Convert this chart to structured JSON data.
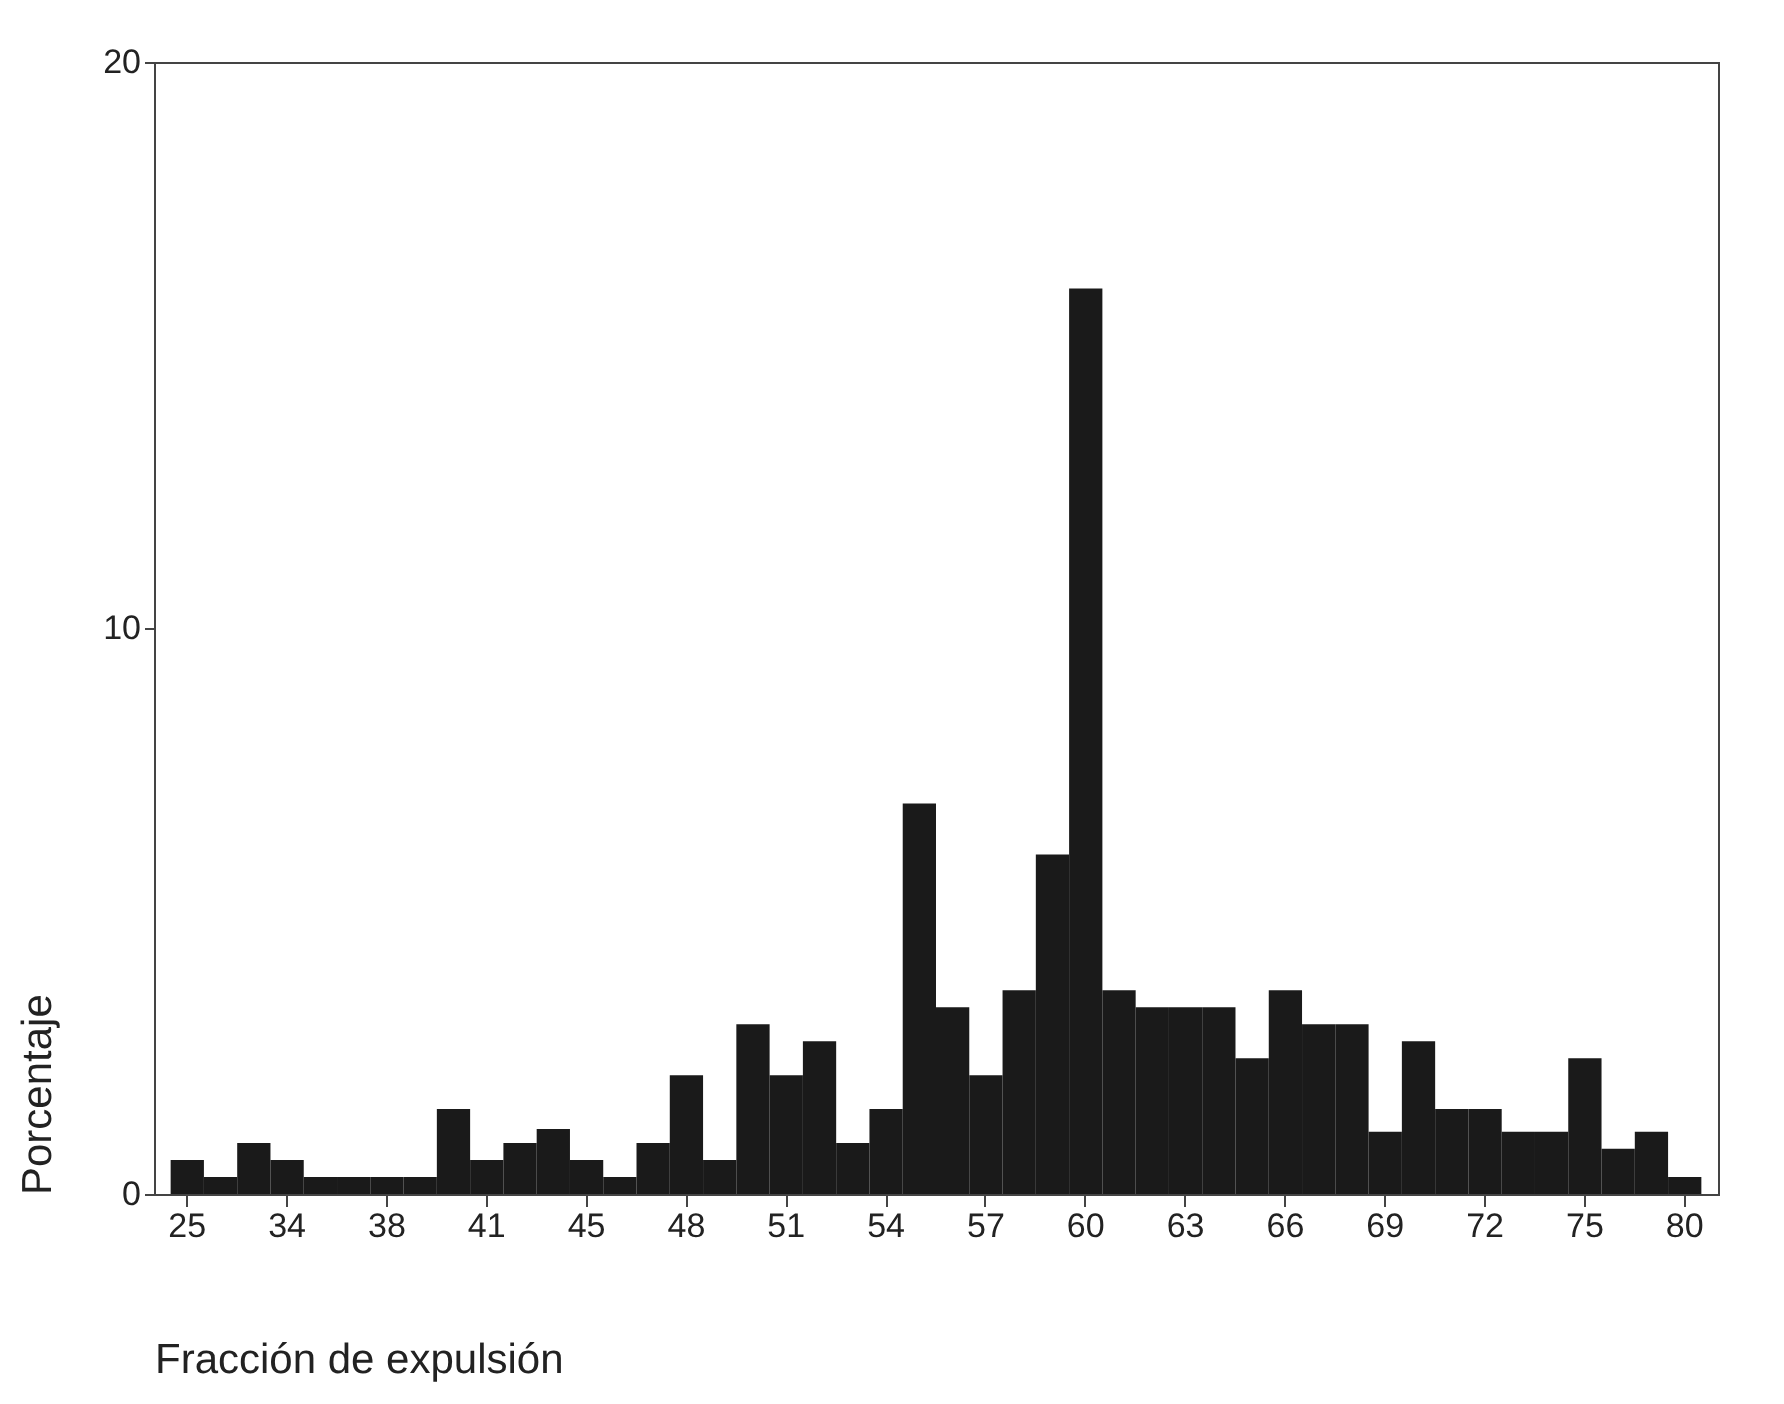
{
  "chart_data": {
    "type": "bar",
    "xlabel": "Fracción de expulsión",
    "ylabel": "Porcentaje",
    "categories": [
      "25",
      null,
      null,
      "34",
      null,
      null,
      "38",
      null,
      null,
      "41",
      null,
      null,
      "45",
      null,
      null,
      "48",
      null,
      null,
      "51",
      null,
      null,
      "54",
      null,
      null,
      "57",
      null,
      null,
      "60",
      null,
      null,
      "63",
      null,
      null,
      "66",
      null,
      null,
      "69",
      null,
      null,
      "72",
      null,
      null,
      "75",
      null,
      null,
      "80"
    ],
    "values": [
      0.6,
      0.3,
      0.9,
      0.6,
      0.3,
      0.3,
      0.3,
      0.3,
      1.5,
      0.6,
      0.9,
      1.15,
      0.6,
      0.3,
      0.9,
      2.1,
      0.6,
      3.0,
      2.1,
      2.7,
      0.9,
      1.5,
      6.9,
      3.3,
      2.1,
      3.6,
      6.0,
      16.0,
      3.6,
      3.3,
      3.3,
      3.3,
      2.4,
      3.6,
      3.0,
      3.0,
      1.1,
      2.7,
      1.5,
      1.5,
      1.1,
      1.1,
      2.4,
      0.8,
      1.1,
      0.3
    ],
    "color": "#1a1a1a",
    "ylim": [
      0,
      20
    ],
    "yticks": [
      0,
      10,
      20
    ],
    "grid": false
  }
}
